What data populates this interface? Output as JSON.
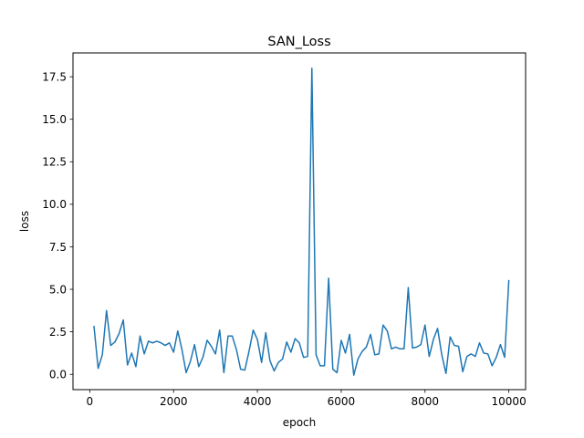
{
  "chart_data": {
    "type": "line",
    "title": "SAN_Loss",
    "xlabel": "epoch",
    "ylabel": "loss",
    "xlim": [
      -400,
      10400
    ],
    "ylim": [
      -0.9,
      18.9
    ],
    "xticks": [
      0,
      2000,
      4000,
      6000,
      8000,
      10000
    ],
    "xtick_labels": [
      "0",
      "2000",
      "4000",
      "6000",
      "8000",
      "10000"
    ],
    "yticks": [
      0.0,
      2.5,
      5.0,
      7.5,
      10.0,
      12.5,
      15.0,
      17.5
    ],
    "ytick_labels": [
      "0.0",
      "2.5",
      "5.0",
      "7.5",
      "10.0",
      "12.5",
      "15.0",
      "17.5"
    ],
    "grid": false,
    "line_color": "#1f77b4",
    "series": [
      {
        "x": [
          100,
          200,
          300,
          400,
          500,
          600,
          700,
          800,
          900,
          1000,
          1100,
          1200,
          1300,
          1400,
          1500,
          1600,
          1700,
          1800,
          1900,
          2000,
          2100,
          2200,
          2300,
          2400,
          2500,
          2600,
          2700,
          2800,
          2900,
          3000,
          3100,
          3200,
          3300,
          3400,
          3500,
          3600,
          3700,
          3800,
          3900,
          4000,
          4100,
          4200,
          4300,
          4400,
          4500,
          4600,
          4700,
          4800,
          4900,
          5000,
          5100,
          5200,
          5300,
          5400,
          5500,
          5600,
          5700,
          5800,
          5900,
          6000,
          6100,
          6200,
          6300,
          6400,
          6500,
          6600,
          6700,
          6800,
          6900,
          7000,
          7100,
          7200,
          7300,
          7400,
          7500,
          7600,
          7700,
          7800,
          7900,
          8000,
          8100,
          8200,
          8300,
          8400,
          8500,
          8600,
          8700,
          8800,
          8900,
          9000,
          9100,
          9200,
          9300,
          9400,
          9500,
          9600,
          9700,
          9800,
          9900,
          10000
        ],
        "values": [
          2.85,
          0.35,
          1.15,
          3.75,
          1.7,
          1.9,
          2.4,
          3.2,
          0.55,
          1.25,
          0.45,
          2.25,
          1.2,
          1.95,
          1.85,
          1.95,
          1.85,
          1.7,
          1.85,
          1.3,
          2.55,
          1.45,
          0.1,
          0.75,
          1.75,
          0.45,
          1.0,
          2.0,
          1.65,
          1.2,
          2.6,
          0.1,
          2.25,
          2.25,
          1.45,
          0.3,
          0.25,
          1.35,
          2.6,
          2.05,
          0.7,
          2.45,
          0.8,
          0.2,
          0.7,
          0.9,
          1.9,
          1.3,
          2.1,
          1.85,
          1.0,
          1.05,
          18.0,
          1.15,
          0.5,
          0.5,
          5.65,
          0.3,
          0.1,
          2.0,
          1.25,
          2.35,
          -0.05,
          0.9,
          1.35,
          1.6,
          2.35,
          1.15,
          1.2,
          2.9,
          2.55,
          1.5,
          1.6,
          1.5,
          1.5,
          5.1,
          1.55,
          1.6,
          1.75,
          2.9,
          1.05,
          2.05,
          2.7,
          1.15,
          0.05,
          2.2,
          1.7,
          1.65,
          0.15,
          1.05,
          1.2,
          1.05,
          1.85,
          1.25,
          1.2,
          0.5,
          1.0,
          1.75,
          1.0,
          5.55
        ]
      }
    ]
  }
}
